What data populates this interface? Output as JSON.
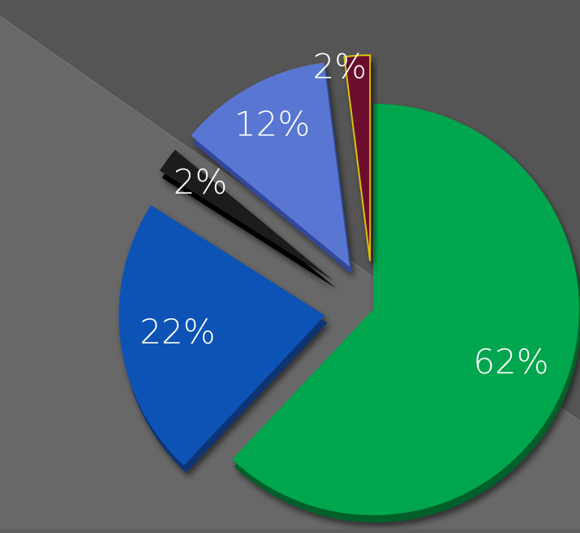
{
  "chart_data": {
    "type": "pie",
    "style": "exploded 3D pie",
    "title": "",
    "legend": "none",
    "slices": [
      {
        "value": 62,
        "label": "62%",
        "color": "#05a64d",
        "side_color": "#04612c"
      },
      {
        "value": 22,
        "label": "22%",
        "color": "#0f52b6",
        "side_color": "#083574"
      },
      {
        "value": 2,
        "label": "2%",
        "color": "#1c1c1c",
        "side_color": "#050505"
      },
      {
        "value": 12,
        "label": "12%",
        "color": "#5876d2",
        "side_color": "#30479a"
      },
      {
        "value": 2,
        "label": "2%",
        "color": "#6c0f2e",
        "side_color": "#420818",
        "border_color": "#d8c400"
      }
    ]
  },
  "background": {
    "upper_color": "#555555",
    "lower_color": "#686868"
  }
}
